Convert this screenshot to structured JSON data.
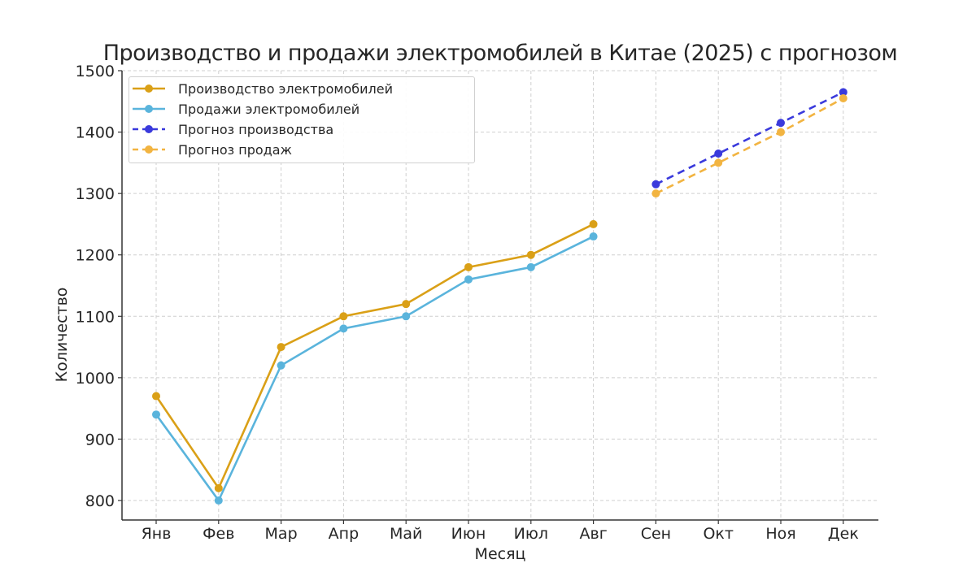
{
  "chart_data": {
    "type": "line",
    "title": "Производство и продажи электромобилей в Китае (2025) с прогнозом",
    "xlabel": "Месяц",
    "ylabel": "Количество",
    "categories": [
      "Янв",
      "Фев",
      "Мар",
      "Апр",
      "Май",
      "Июн",
      "Июл",
      "Авг",
      "Сен",
      "Окт",
      "Ноя",
      "Дек"
    ],
    "ylim": [
      780,
      1500
    ],
    "yticks": [
      "800",
      "900",
      "1000",
      "1100",
      "1200",
      "1300",
      "1400",
      "1500"
    ],
    "grid": true,
    "legend_position": "upper left",
    "series": [
      {
        "name": "Производство электромобилей",
        "color": "#DAA017",
        "style": "solid",
        "x": [
          "Янв",
          "Фев",
          "Мар",
          "Апр",
          "Май",
          "Июн",
          "Июл",
          "Авг"
        ],
        "values": [
          970,
          820,
          1050,
          1100,
          1120,
          1180,
          1200,
          1250
        ]
      },
      {
        "name": "Продажи электромобилей",
        "color": "#5AB4DC",
        "style": "solid",
        "x": [
          "Янв",
          "Фев",
          "Мар",
          "Апр",
          "Май",
          "Июн",
          "Июл",
          "Авг"
        ],
        "values": [
          940,
          800,
          1020,
          1080,
          1100,
          1160,
          1180,
          1230
        ]
      },
      {
        "name": "Прогноз производства",
        "color": "#3A3ADC",
        "style": "dashed",
        "x": [
          "Сен",
          "Окт",
          "Ноя",
          "Дек"
        ],
        "values": [
          1315,
          1365,
          1415,
          1465
        ]
      },
      {
        "name": "Прогноз продаж",
        "color": "#F2B441",
        "style": "dashed",
        "x": [
          "Сен",
          "Окт",
          "Ноя",
          "Дек"
        ],
        "values": [
          1300,
          1350,
          1400,
          1455
        ]
      }
    ]
  }
}
